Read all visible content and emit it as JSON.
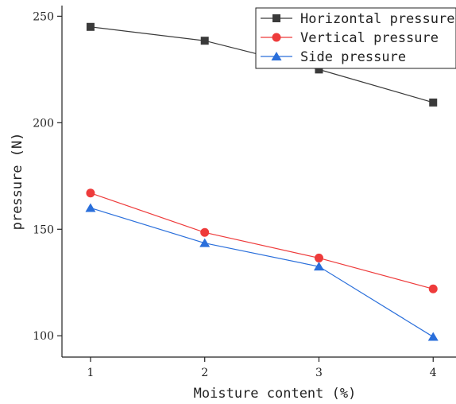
{
  "chart_data": {
    "type": "line",
    "xlabel": "Moisture content (%)",
    "ylabel": "pressure (N)",
    "x": [
      1,
      2,
      3,
      4
    ],
    "x_ticks": [
      "1",
      "2",
      "3",
      "4"
    ],
    "y_ticks": [
      "100",
      "150",
      "200",
      "250"
    ],
    "xlim": [
      0.75,
      4.2
    ],
    "ylim": [
      90,
      255
    ],
    "legend_position": "top-right",
    "grid": false,
    "series": [
      {
        "name": "Horizontal pressure",
        "values": [
          245,
          238.5,
          225,
          209.5
        ],
        "color": "#3a3a3a",
        "marker": "square"
      },
      {
        "name": "Vertical pressure",
        "values": [
          167,
          148.5,
          136.5,
          122
        ],
        "color": "#ee3b3b",
        "marker": "circle"
      },
      {
        "name": "Side pressure",
        "values": [
          160,
          143.5,
          132.5,
          99.5
        ],
        "color": "#2a6fdb",
        "marker": "triangle"
      }
    ]
  }
}
